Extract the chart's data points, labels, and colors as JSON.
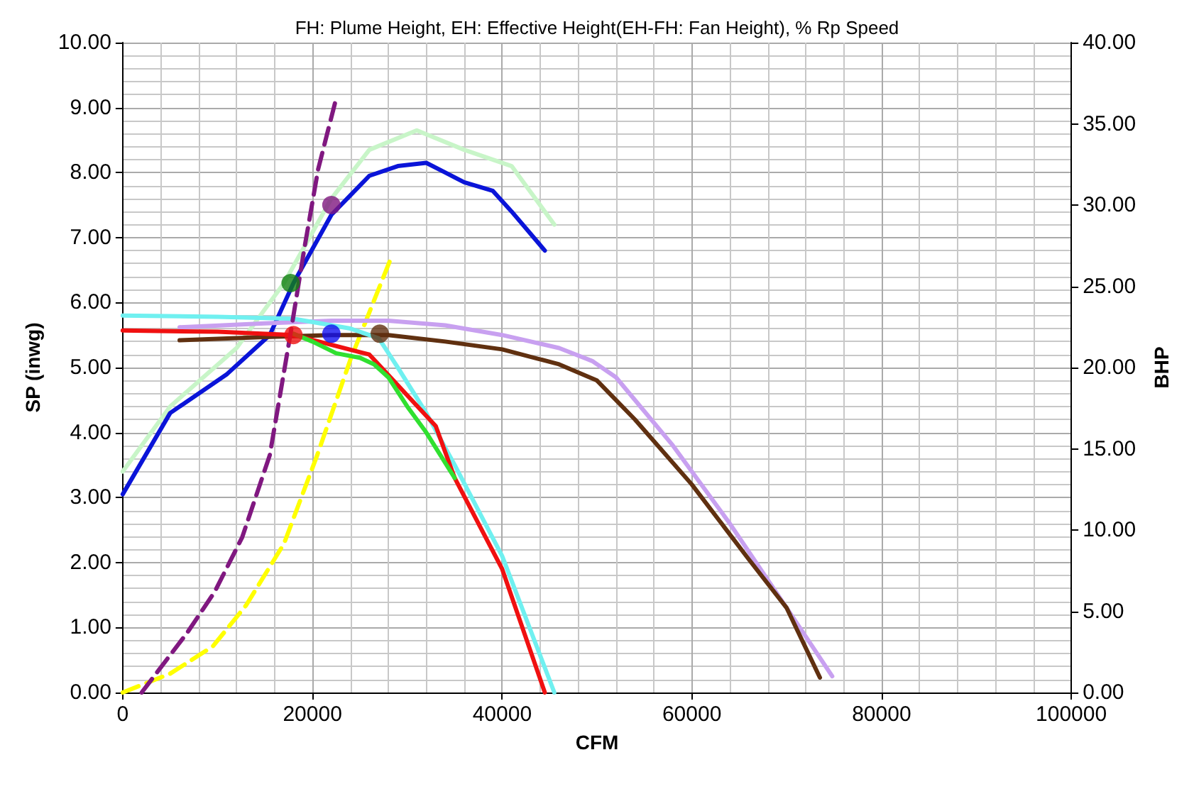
{
  "chart_data": {
    "type": "line",
    "title": "FH: Plume Height, EH: Effective Height(EH-FH: Fan Height), % Rp Speed",
    "xlabel": "CFM",
    "ylabel": "SP (inwg)",
    "y2label": "BHP",
    "xlim": [
      0,
      100000
    ],
    "xticks": [
      0,
      20000,
      40000,
      60000,
      80000,
      100000
    ],
    "ylim": [
      0,
      10
    ],
    "yticks": [
      {
        "value": 0,
        "label": "0.00"
      },
      {
        "value": 1,
        "label": "1.00"
      },
      {
        "value": 2,
        "label": "2.00"
      },
      {
        "value": 3,
        "label": "3.00"
      },
      {
        "value": 4,
        "label": "4.00"
      },
      {
        "value": 5,
        "label": "5.00"
      },
      {
        "value": 6,
        "label": "6.00"
      },
      {
        "value": 7,
        "label": "7.00"
      },
      {
        "value": 8,
        "label": "8.00"
      },
      {
        "value": 9,
        "label": "9.00"
      },
      {
        "value": 10,
        "label": "10.00"
      }
    ],
    "y2lim": [
      0,
      40
    ],
    "y2ticks": [
      {
        "value": 0,
        "label": "0.00"
      },
      {
        "value": 5,
        "label": "5.00"
      },
      {
        "value": 10,
        "label": "10.00"
      },
      {
        "value": 15,
        "label": "15.00"
      },
      {
        "value": 20,
        "label": "20.00"
      },
      {
        "value": 25,
        "label": "25.00"
      },
      {
        "value": 30,
        "label": "30.00"
      },
      {
        "value": 35,
        "label": "35.00"
      },
      {
        "value": 40,
        "label": "40.00"
      }
    ],
    "grid": true,
    "marker": "none",
    "series": [
      {
        "color": "#c8f5c8",
        "x": [
          0,
          5000,
          12000,
          17000,
          22000,
          26000,
          31000,
          36000,
          41000,
          45500
        ],
        "values": [
          3.4,
          4.4,
          5.3,
          6.3,
          7.6,
          8.35,
          8.65,
          8.35,
          8.1,
          7.2
        ]
      },
      {
        "color": "#0a14d8",
        "x": [
          0,
          5000,
          11000,
          15500,
          18000,
          22000,
          26000,
          29000,
          32000,
          34000,
          36000,
          39000,
          41000,
          44500
        ],
        "values": [
          3.05,
          4.3,
          4.9,
          5.5,
          6.3,
          7.35,
          7.95,
          8.1,
          8.15,
          8.0,
          7.85,
          7.72,
          7.4,
          6.8
        ]
      },
      {
        "color": "#ffff00",
        "line_style": "dashed",
        "x": [
          0,
          5000,
          9500,
          13000,
          17000,
          20500,
          24000,
          28300
        ],
        "values": [
          0,
          0.29,
          0.71,
          1.34,
          2.29,
          3.65,
          5.12,
          6.69
        ]
      },
      {
        "color": "#c8a0f0",
        "x": [
          6000,
          15000,
          22000,
          28000,
          34000,
          40000,
          46000,
          49500,
          52000,
          58000,
          64000,
          70000,
          74800
        ],
        "values": [
          5.62,
          5.68,
          5.72,
          5.72,
          5.65,
          5.5,
          5.3,
          5.1,
          4.85,
          3.8,
          2.6,
          1.3,
          0.25
        ]
      },
      {
        "color": "#603010",
        "x": [
          6000,
          15000,
          22000,
          28000,
          34000,
          40000,
          46000,
          50000,
          54000,
          60000,
          66000,
          70000,
          73500
        ],
        "values": [
          5.42,
          5.47,
          5.5,
          5.5,
          5.4,
          5.28,
          5.05,
          4.8,
          4.2,
          3.2,
          2.05,
          1.3,
          0.23
        ]
      },
      {
        "color": "#70f0f0",
        "x": [
          0,
          10000,
          18000,
          24000,
          27000,
          29000,
          32000,
          35000,
          40000,
          45500
        ],
        "values": [
          5.8,
          5.78,
          5.75,
          5.6,
          5.45,
          5.0,
          4.3,
          3.5,
          2.1,
          0
        ]
      },
      {
        "color": "#f01010",
        "x": [
          0,
          10000,
          18000,
          26000,
          33000,
          35000,
          40000,
          44500
        ],
        "values": [
          5.57,
          5.55,
          5.5,
          5.2,
          4.1,
          3.3,
          1.9,
          0
        ]
      },
      {
        "color": "#30e030",
        "x": [
          18000,
          20000,
          22500,
          25000,
          26500,
          28000,
          30000,
          32000,
          33500,
          35000
        ],
        "values": [
          5.52,
          5.4,
          5.22,
          5.15,
          5.05,
          4.85,
          4.4,
          4.0,
          3.65,
          3.3
        ]
      },
      {
        "color": "#801880",
        "line_style": "dashed",
        "x": [
          2000,
          6800,
          9700,
          12600,
          15500,
          17700,
          19100,
          20600,
          22500
        ],
        "values": [
          0,
          0.92,
          1.55,
          2.39,
          3.65,
          5.53,
          6.79,
          8.05,
          9.14
        ]
      },
      {
        "type": "scatter",
        "marker": "circle",
        "colors": [
          "#801880",
          "#108010",
          "#f01010",
          "#1010f0",
          "#603010"
        ],
        "x": [
          22000,
          17700,
          18000,
          22000,
          27100
        ],
        "values": [
          7.5,
          6.3,
          5.5,
          5.52,
          5.52
        ]
      }
    ]
  }
}
